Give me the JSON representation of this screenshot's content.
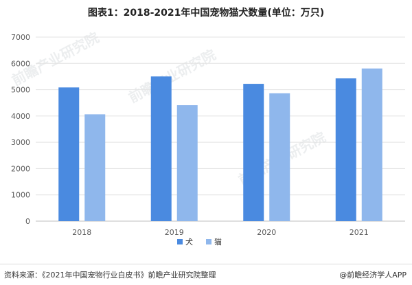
{
  "title": "图表1：2018-2021年中国宠物猫犬数量(单位：万只)",
  "watermark": "前瞻产业研究院",
  "chart_data": {
    "type": "bar",
    "title": "图表1：2018-2021年中国宠物猫犬数量(单位：万只)",
    "categories": [
      "2018",
      "2019",
      "2020",
      "2021"
    ],
    "series": [
      {
        "name": "犬",
        "values": [
          5085,
          5503,
          5222,
          5429
        ],
        "color": "#4a8ae0"
      },
      {
        "name": "猫",
        "values": [
          4064,
          4412,
          4862,
          5806
        ],
        "color": "#8fb7ec"
      }
    ],
    "ylim": [
      0,
      7000
    ],
    "yticks": [
      "0",
      "1000",
      "2000",
      "3000",
      "4000",
      "5000",
      "6000",
      "7000"
    ],
    "grid": true,
    "legend_position": "bottom-center"
  },
  "footer": {
    "source": "资料来源：《2021年中国宠物行业白皮书》前瞻产业研究院整理",
    "brand": "@前瞻经济学人APP"
  }
}
